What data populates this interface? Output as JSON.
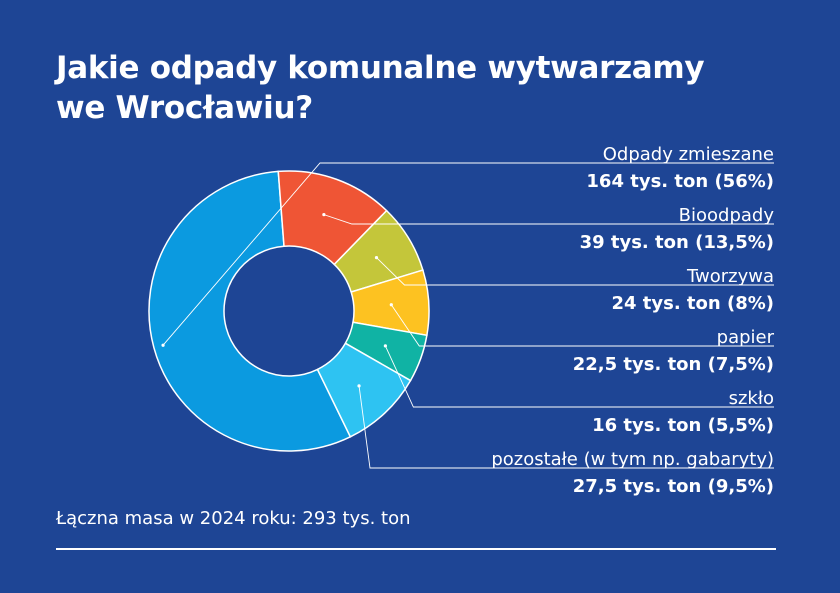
{
  "title_lines": [
    "Jakie odpady komunalne wytwarzamy",
    "we Wrocławiu?"
  ],
  "footer": "Łączna masa w 2024 roku: 293 tys. ton",
  "chart_data": {
    "type": "pie",
    "donut": true,
    "legend_placement": "right",
    "total_label": "Łączna masa w 2024 roku: 293 tys. ton",
    "series": [
      {
        "name": "Odpady zmieszane",
        "value_label": "164 tys. ton (56%)",
        "percent": 56,
        "color": "#0b9ae0"
      },
      {
        "name": "Bioodpady",
        "value_label": "39 tys. ton (13,5%)",
        "percent": 13.5,
        "color": "#ef5535"
      },
      {
        "name": "Tworzywa",
        "value_label": "24 tys. ton (8%)",
        "percent": 8,
        "color": "#c4c63a"
      },
      {
        "name": "papier",
        "value_label": "22,5 tys. ton (7,5%)",
        "percent": 7.5,
        "color": "#fdc221"
      },
      {
        "name": "szkło",
        "value_label": "16 tys. ton (5,5%)",
        "percent": 5.5,
        "color": "#10b3a4"
      },
      {
        "name": "pozostałe (w tym np. gabaryty)",
        "value_label": "27,5 tys. ton (9,5%)",
        "percent": 9.5,
        "color": "#2ec3f2"
      }
    ]
  }
}
